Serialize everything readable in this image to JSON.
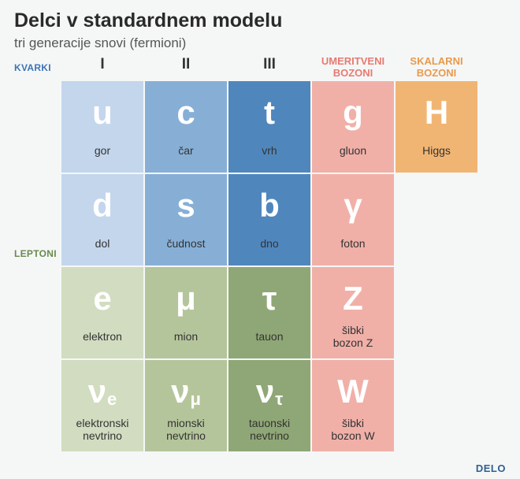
{
  "title": "Delci v standardnem modelu",
  "subtitle": "tri generacije snovi (fermioni)",
  "gen_labels": [
    "I",
    "II",
    "III"
  ],
  "boson_headers": {
    "gauge": "UMERITVENI BOZONI",
    "scalar": "SKALARNI BOZONI"
  },
  "boson_header_colors": {
    "gauge": "#e77a6f",
    "scalar": "#e99a4a"
  },
  "side_labels": {
    "kvarki": {
      "text": "KVARKI",
      "color": "#3d74b5"
    },
    "leptoni": {
      "text": "LEPTONI",
      "color": "#6a8a4e"
    }
  },
  "colors": {
    "q1": "#c3d6ec",
    "q2": "#87afd6",
    "q3": "#4f87bd",
    "l1": "#d2dcc0",
    "l2": "#b5c59b",
    "l3": "#8fa776",
    "gauge": "#f0b0a8",
    "scalar": "#f1b573"
  },
  "cells": {
    "u": {
      "symbol": "u",
      "name": "gor",
      "color_key": "q1"
    },
    "c": {
      "symbol": "c",
      "name": "čar",
      "color_key": "q2"
    },
    "t": {
      "symbol": "t",
      "name": "vrh",
      "color_key": "q3"
    },
    "g": {
      "symbol": "g",
      "name": "gluon",
      "color_key": "gauge"
    },
    "H": {
      "symbol": "H",
      "name": "Higgs",
      "color_key": "scalar"
    },
    "d": {
      "symbol": "d",
      "name": "dol",
      "color_key": "q1"
    },
    "s": {
      "symbol": "s",
      "name": "čudnost",
      "color_key": "q2"
    },
    "b": {
      "symbol": "b",
      "name": "dno",
      "color_key": "q3"
    },
    "ph": {
      "symbol": "γ",
      "name": "foton",
      "color_key": "gauge"
    },
    "e": {
      "symbol": "e",
      "name": "elektron",
      "color_key": "l1"
    },
    "mu": {
      "symbol": "μ",
      "name": "mion",
      "color_key": "l2"
    },
    "ta": {
      "symbol": "τ",
      "name": "tauon",
      "color_key": "l3"
    },
    "Z": {
      "symbol": "Z",
      "name": "šibki bozon Z",
      "color_key": "gauge"
    },
    "ve": {
      "symbol": "ν",
      "sub": "e",
      "name": "elektronski nevtrino",
      "color_key": "l1"
    },
    "vm": {
      "symbol": "ν",
      "sub": "μ",
      "name": "mionski nevtrino",
      "color_key": "l2"
    },
    "vt": {
      "symbol": "ν",
      "sub": "τ",
      "name": "tauonski nevtrino",
      "color_key": "l3"
    },
    "W": {
      "symbol": "W",
      "name": "šibki bozon W",
      "color_key": "gauge"
    }
  },
  "layout": [
    [
      "u",
      "c",
      "t",
      "g",
      "H"
    ],
    [
      "d",
      "s",
      "b",
      "ph",
      null
    ],
    [
      "e",
      "mu",
      "ta",
      "Z",
      null
    ],
    [
      "ve",
      "vm",
      "vt",
      "W",
      null
    ]
  ],
  "credit": "DELO"
}
